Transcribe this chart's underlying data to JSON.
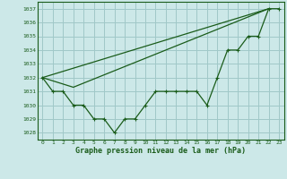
{
  "title": "Graphe pression niveau de la mer (hPa)",
  "bg_color": "#cce8e8",
  "grid_color": "#a0c8c8",
  "line_color": "#1a5c1a",
  "xlim": [
    -0.5,
    23.5
  ],
  "ylim": [
    1027.5,
    1037.5
  ],
  "yticks": [
    1028,
    1029,
    1030,
    1031,
    1032,
    1033,
    1034,
    1035,
    1036,
    1037
  ],
  "xticks": [
    0,
    1,
    2,
    3,
    4,
    5,
    6,
    7,
    8,
    9,
    10,
    11,
    12,
    13,
    14,
    15,
    16,
    17,
    18,
    19,
    20,
    21,
    22,
    23
  ],
  "series1": {
    "x": [
      0,
      1,
      2,
      3,
      4,
      5,
      6,
      7,
      8,
      9,
      10,
      11,
      12,
      13,
      14,
      15,
      16,
      17,
      18,
      19,
      20,
      21,
      22,
      23
    ],
    "y": [
      1032,
      1031,
      1031,
      1030,
      1030,
      1029,
      1029,
      1028,
      1029,
      1029,
      1030,
      1031,
      1031,
      1031,
      1031,
      1031,
      1030,
      1032,
      1034,
      1034,
      1035,
      1035,
      1037,
      1037
    ]
  },
  "series2": {
    "x": [
      0,
      22
    ],
    "y": [
      1032,
      1037
    ]
  },
  "series3": {
    "x": [
      0,
      3,
      22
    ],
    "y": [
      1032,
      1031.3,
      1037
    ]
  }
}
